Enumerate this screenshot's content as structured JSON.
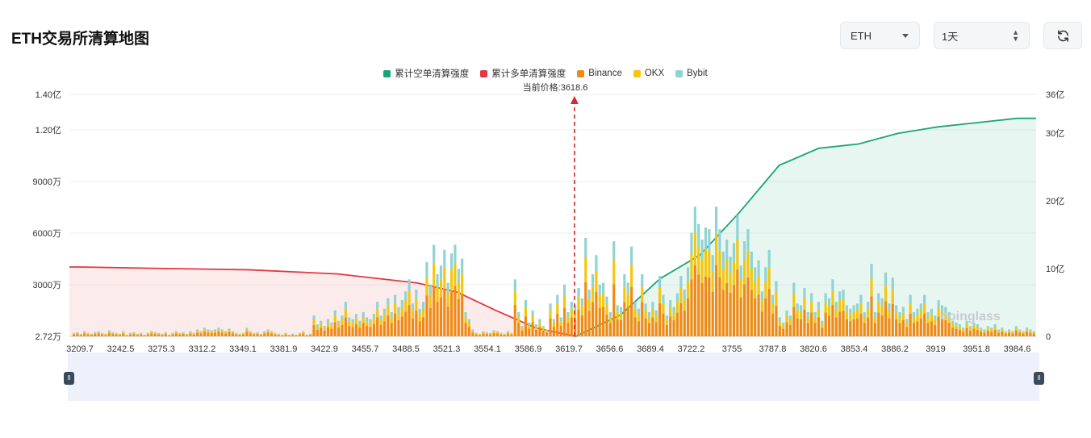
{
  "header": {
    "title": "ETH交易所清算地图",
    "symbol_select": "ETH",
    "range_select": "1天"
  },
  "colors": {
    "short_cum": "#1aa37a",
    "long_cum": "#e2383f",
    "binance": "#f08a14",
    "okx": "#f3c60f",
    "bybit": "#8fd3d3"
  },
  "watermark": "coinglass",
  "chart_data": {
    "type": "bar",
    "legend": [
      "累计空单清算强度",
      "累计多单清算强度",
      "Binance",
      "OKX",
      "Bybit"
    ],
    "current_price_label": "当前价格:3618.6",
    "current_price": 3618.6,
    "left_axis_ticks": [
      "2.72万",
      "3000万",
      "6000万",
      "9000万",
      "1.20亿",
      "1.40亿"
    ],
    "right_axis_ticks": [
      "0",
      "10亿",
      "20亿",
      "30亿",
      "36亿"
    ],
    "x_ticks": [
      "3209.7",
      "3242.5",
      "3275.3",
      "3312.2",
      "3349.1",
      "3381.9",
      "3422.9",
      "3455.7",
      "3488.5",
      "3521.3",
      "3554.1",
      "3586.9",
      "3619.7",
      "3656.6",
      "3689.4",
      "3722.2",
      "3755",
      "3787.8",
      "3820.6",
      "3853.4",
      "3886.2",
      "3919",
      "3951.8",
      "3984.6"
    ],
    "ylim_left": [
      0,
      140000000
    ],
    "ylim_right": [
      0,
      3600000000
    ],
    "bars_total_millions": [
      2,
      2.5,
      1.5,
      3,
      2,
      1.5,
      2.5,
      3,
      2,
      1.5,
      3.5,
      2.5,
      2,
      1.5,
      3,
      1,
      2,
      2.5,
      1.5,
      2,
      1,
      2,
      3,
      2.5,
      2,
      1.5,
      2.5,
      1,
      2,
      3,
      2,
      2.5,
      1.5,
      3,
      2,
      4,
      3,
      5,
      4,
      3.5,
      4,
      5,
      4,
      3,
      4.5,
      3,
      2,
      1.5,
      2,
      5,
      3,
      2,
      2.5,
      1.5,
      3,
      4,
      3,
      2,
      1.5,
      1,
      2,
      1,
      1.5,
      1,
      2,
      3,
      1,
      1.5,
      12,
      7,
      9,
      6,
      10,
      8,
      15,
      9,
      12,
      20,
      11,
      10,
      13,
      9,
      14,
      11,
      10,
      13,
      20,
      12,
      16,
      22,
      14,
      24,
      17,
      21,
      26,
      33,
      19,
      27,
      16,
      20,
      43,
      30,
      53,
      36,
      41,
      50,
      31,
      48,
      53,
      39,
      45,
      14,
      10,
      4,
      2,
      1.5,
      3,
      2.5,
      2,
      3.5,
      3,
      2,
      1.5,
      3,
      2,
      33,
      14,
      6,
      21,
      8,
      15,
      7,
      10,
      6,
      4,
      19,
      10,
      24,
      11,
      30,
      14,
      20,
      18,
      28,
      22,
      57,
      27,
      36,
      47,
      30,
      31,
      23,
      14,
      55,
      18,
      17,
      36,
      31,
      52,
      20,
      16,
      36,
      19,
      14,
      20,
      15,
      35,
      24,
      12,
      21,
      17,
      25,
      35,
      27,
      40,
      60,
      75,
      65,
      56,
      63,
      62,
      47,
      75,
      62,
      49,
      56,
      46,
      54,
      70,
      41,
      55,
      62,
      49,
      40,
      44,
      26,
      40,
      50,
      24,
      32,
      11,
      8,
      15,
      12,
      31,
      19,
      18,
      28,
      14,
      25,
      14,
      20,
      9,
      25,
      22,
      33,
      20,
      26,
      27,
      18,
      16,
      18,
      19,
      24,
      14,
      20,
      42,
      14,
      25,
      22,
      37,
      19,
      34,
      18,
      14,
      17,
      10,
      24,
      14,
      16,
      19,
      24,
      14,
      16,
      12,
      21,
      18,
      17,
      14,
      9,
      8,
      7,
      5,
      9,
      6,
      8,
      7,
      5,
      4,
      6,
      5,
      7,
      4,
      5,
      3,
      4,
      3,
      6,
      4,
      3,
      5,
      4,
      3
    ],
    "long_cum_series": [
      {
        "x": 3209.7,
        "y": 1.0
      },
      {
        "x": 3275.3,
        "y": 0.98
      },
      {
        "x": 3349.1,
        "y": 0.96
      },
      {
        "x": 3422.9,
        "y": 0.9
      },
      {
        "x": 3488.5,
        "y": 0.77
      },
      {
        "x": 3521.3,
        "y": 0.64
      },
      {
        "x": 3554.1,
        "y": 0.37
      },
      {
        "x": 3586.9,
        "y": 0.12
      },
      {
        "x": 3619.7,
        "y": 0.0
      }
    ],
    "short_cum_series": [
      {
        "x": 3619.7,
        "y": 0.0
      },
      {
        "x": 3656.6,
        "y": 0.1
      },
      {
        "x": 3689.4,
        "y": 0.27
      },
      {
        "x": 3722.2,
        "y": 0.38
      },
      {
        "x": 3755,
        "y": 0.58
      },
      {
        "x": 3787.8,
        "y": 0.8
      },
      {
        "x": 3820.6,
        "y": 0.88
      },
      {
        "x": 3853.4,
        "y": 0.9
      },
      {
        "x": 3886.2,
        "y": 0.95
      },
      {
        "x": 3919,
        "y": 0.98
      },
      {
        "x": 3951.8,
        "y": 1.0
      },
      {
        "x": 3984.6,
        "y": 1.02
      }
    ]
  }
}
